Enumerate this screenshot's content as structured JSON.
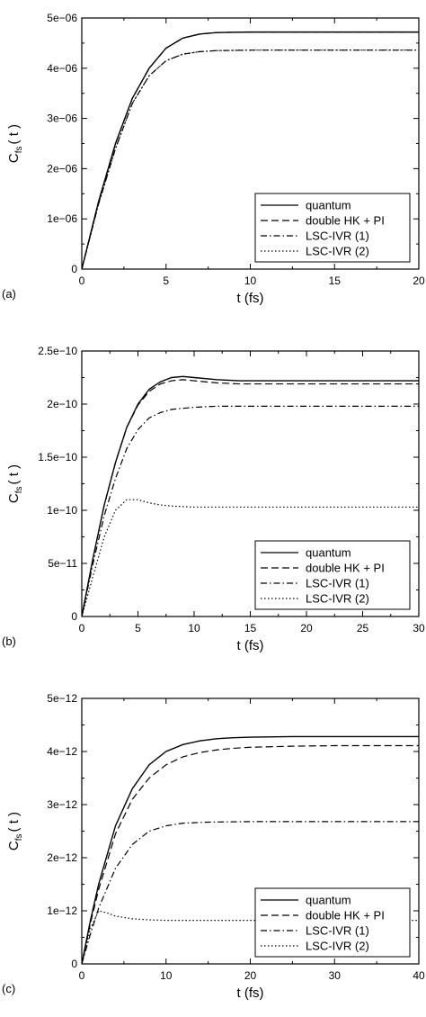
{
  "chart_data": [
    {
      "type": "line",
      "panel_label": "(a)",
      "xlabel": "t (fs)",
      "ylabel_main": "C",
      "ylabel_sub": "fs",
      "ylabel_tail": "( t )",
      "xlim": [
        0,
        20
      ],
      "ylim": [
        0,
        5e-06
      ],
      "xticks": [
        0,
        5,
        10,
        15,
        20
      ],
      "xtick_labels": [
        "0",
        "5",
        "10",
        "15",
        "20"
      ],
      "yticks": [
        0,
        1e-06,
        2e-06,
        3e-06,
        4e-06,
        5e-06
      ],
      "ytick_labels": [
        "0",
        "1e−06",
        "2e−06",
        "3e−06",
        "4e−06",
        "5e−06"
      ],
      "legend_position": "bottom-right",
      "series": [
        {
          "name": "quantum",
          "style": "solid",
          "x": [
            0,
            1,
            2,
            3,
            4,
            5,
            6,
            7,
            8,
            10,
            12,
            15,
            20
          ],
          "y": [
            0,
            1.35e-06,
            2.5e-06,
            3.4e-06,
            4e-06,
            4.4e-06,
            4.6e-06,
            4.68e-06,
            4.71e-06,
            4.72e-06,
            4.72e-06,
            4.72e-06,
            4.72e-06
          ]
        },
        {
          "name": "double HK + PI",
          "style": "dashed",
          "x": [
            0,
            1,
            2,
            3,
            4,
            5,
            6,
            7,
            8,
            10,
            12,
            15,
            20
          ],
          "y": [
            0,
            1.35e-06,
            2.5e-06,
            3.4e-06,
            4e-06,
            4.4e-06,
            4.6e-06,
            4.68e-06,
            4.71e-06,
            4.72e-06,
            4.72e-06,
            4.72e-06,
            4.72e-06
          ]
        },
        {
          "name": "LSC-IVR (1)",
          "style": "dashdot",
          "x": [
            0,
            1,
            2,
            3,
            4,
            5,
            6,
            7,
            8,
            10,
            12,
            15,
            20
          ],
          "y": [
            0,
            1.3e-06,
            2.4e-06,
            3.3e-06,
            3.85e-06,
            4.15e-06,
            4.28e-06,
            4.33e-06,
            4.35e-06,
            4.36e-06,
            4.36e-06,
            4.36e-06,
            4.36e-06
          ]
        },
        {
          "name": "LSC-IVR (2)",
          "style": "dotted",
          "x": [
            0,
            1,
            2,
            3,
            4,
            5,
            6,
            7,
            8,
            10,
            12,
            15,
            20
          ],
          "y": [
            0,
            1.3e-06,
            2.4e-06,
            3.3e-06,
            3.85e-06,
            4.15e-06,
            4.28e-06,
            4.33e-06,
            4.35e-06,
            4.36e-06,
            4.36e-06,
            4.36e-06,
            4.36e-06
          ]
        }
      ]
    },
    {
      "type": "line",
      "panel_label": "(b)",
      "xlabel": "t (fs)",
      "ylabel_main": "C",
      "ylabel_sub": "fs",
      "ylabel_tail": "( t )",
      "xlim": [
        0,
        30
      ],
      "ylim": [
        0,
        2.5e-10
      ],
      "xticks": [
        0,
        5,
        10,
        15,
        20,
        25,
        30
      ],
      "xtick_labels": [
        "0",
        "5",
        "10",
        "15",
        "20",
        "25",
        "30"
      ],
      "yticks": [
        0,
        5e-11,
        1e-10,
        1.5e-10,
        2e-10,
        2.5e-10
      ],
      "ytick_labels": [
        "0",
        "5e−11",
        "1e−10",
        "1.5e−10",
        "2e−10",
        "2.5e−10"
      ],
      "legend_position": "bottom-right",
      "series": [
        {
          "name": "quantum",
          "style": "solid",
          "x": [
            0,
            1,
            2,
            3,
            4,
            5,
            6,
            7,
            8,
            9,
            10,
            12,
            14,
            16,
            20,
            25,
            30
          ],
          "y": [
            0,
            5.5e-11,
            1.05e-10,
            1.45e-10,
            1.78e-10,
            2e-10,
            2.14e-10,
            2.21e-10,
            2.25e-10,
            2.26e-10,
            2.25e-10,
            2.23e-10,
            2.22e-10,
            2.22e-10,
            2.22e-10,
            2.22e-10,
            2.22e-10
          ]
        },
        {
          "name": "double HK + PI",
          "style": "dashed",
          "x": [
            0,
            1,
            2,
            3,
            4,
            5,
            6,
            7,
            8,
            9,
            10,
            12,
            14,
            16,
            20,
            25,
            30
          ],
          "y": [
            0,
            5.5e-11,
            1.05e-10,
            1.45e-10,
            1.78e-10,
            1.99e-10,
            2.12e-10,
            2.19e-10,
            2.22e-10,
            2.23e-10,
            2.22e-10,
            2.2e-10,
            2.19e-10,
            2.19e-10,
            2.19e-10,
            2.19e-10,
            2.19e-10
          ]
        },
        {
          "name": "LSC-IVR (1)",
          "style": "dashdot",
          "x": [
            0,
            1,
            2,
            3,
            4,
            5,
            6,
            7,
            8,
            10,
            12,
            15,
            20,
            25,
            30
          ],
          "y": [
            0,
            5e-11,
            9.5e-11,
            1.3e-10,
            1.58e-10,
            1.76e-10,
            1.87e-10,
            1.92e-10,
            1.95e-10,
            1.97e-10,
            1.98e-10,
            1.98e-10,
            1.98e-10,
            1.98e-10,
            1.98e-10
          ]
        },
        {
          "name": "LSC-IVR (2)",
          "style": "dotted",
          "x": [
            0,
            1,
            2,
            3,
            4,
            5,
            6,
            7,
            8,
            10,
            12,
            15,
            20,
            25,
            30
          ],
          "y": [
            0,
            3.8e-11,
            7.5e-11,
            1e-10,
            1.1e-10,
            1.1e-10,
            1.07e-10,
            1.05e-10,
            1.04e-10,
            1.03e-10,
            1.03e-10,
            1.03e-10,
            1.03e-10,
            1.03e-10,
            1.03e-10
          ]
        }
      ]
    },
    {
      "type": "line",
      "panel_label": "(c)",
      "xlabel": "t (fs)",
      "ylabel_main": "C",
      "ylabel_sub": "fs",
      "ylabel_tail": "( t )",
      "xlim": [
        0,
        40
      ],
      "ylim": [
        0,
        5e-12
      ],
      "xticks": [
        0,
        10,
        20,
        30,
        40
      ],
      "xtick_labels": [
        "0",
        "10",
        "20",
        "30",
        "40"
      ],
      "yticks": [
        0,
        1e-12,
        2e-12,
        3e-12,
        4e-12,
        5e-12
      ],
      "ytick_labels": [
        "0",
        "1e−12",
        "2e−12",
        "3e−12",
        "4e−12",
        "5e−12"
      ],
      "legend_position": "bottom-right",
      "series": [
        {
          "name": "quantum",
          "style": "solid",
          "x": [
            0,
            1,
            2,
            4,
            6,
            8,
            10,
            12,
            14,
            16,
            18,
            20,
            25,
            30,
            35,
            40
          ],
          "y": [
            0,
            8e-13,
            1.5e-12,
            2.6e-12,
            3.3e-12,
            3.75e-12,
            4e-12,
            4.13e-12,
            4.2e-12,
            4.24e-12,
            4.26e-12,
            4.27e-12,
            4.28e-12,
            4.28e-12,
            4.28e-12,
            4.28e-12
          ]
        },
        {
          "name": "double HK + PI",
          "style": "dashed",
          "x": [
            0,
            1,
            2,
            4,
            6,
            8,
            10,
            12,
            14,
            16,
            18,
            20,
            25,
            30,
            35,
            40
          ],
          "y": [
            0,
            7.5e-13,
            1.4e-12,
            2.45e-12,
            3.1e-12,
            3.5e-12,
            3.75e-12,
            3.9e-12,
            3.98e-12,
            4.03e-12,
            4.06e-12,
            4.08e-12,
            4.1e-12,
            4.11e-12,
            4.11e-12,
            4.11e-12
          ]
        },
        {
          "name": "LSC-IVR (1)",
          "style": "dashdot",
          "x": [
            0,
            1,
            2,
            4,
            6,
            8,
            10,
            12,
            15,
            20,
            25,
            30,
            35,
            40
          ],
          "y": [
            0,
            5.5e-13,
            1.05e-12,
            1.8e-12,
            2.25e-12,
            2.5e-12,
            2.6e-12,
            2.65e-12,
            2.67e-12,
            2.68e-12,
            2.68e-12,
            2.68e-12,
            2.68e-12,
            2.68e-12
          ]
        },
        {
          "name": "LSC-IVR (2)",
          "style": "dotted",
          "x": [
            0,
            1,
            2,
            3,
            4,
            6,
            8,
            10,
            15,
            20,
            25,
            30,
            35,
            40
          ],
          "y": [
            0,
            6.5e-13,
            1e-12,
            9.6e-13,
            9e-13,
            8.5e-13,
            8.3e-13,
            8.2e-13,
            8.2e-13,
            8.2e-13,
            8.2e-13,
            8.2e-13,
            8.2e-13,
            8.2e-13
          ]
        }
      ]
    }
  ]
}
